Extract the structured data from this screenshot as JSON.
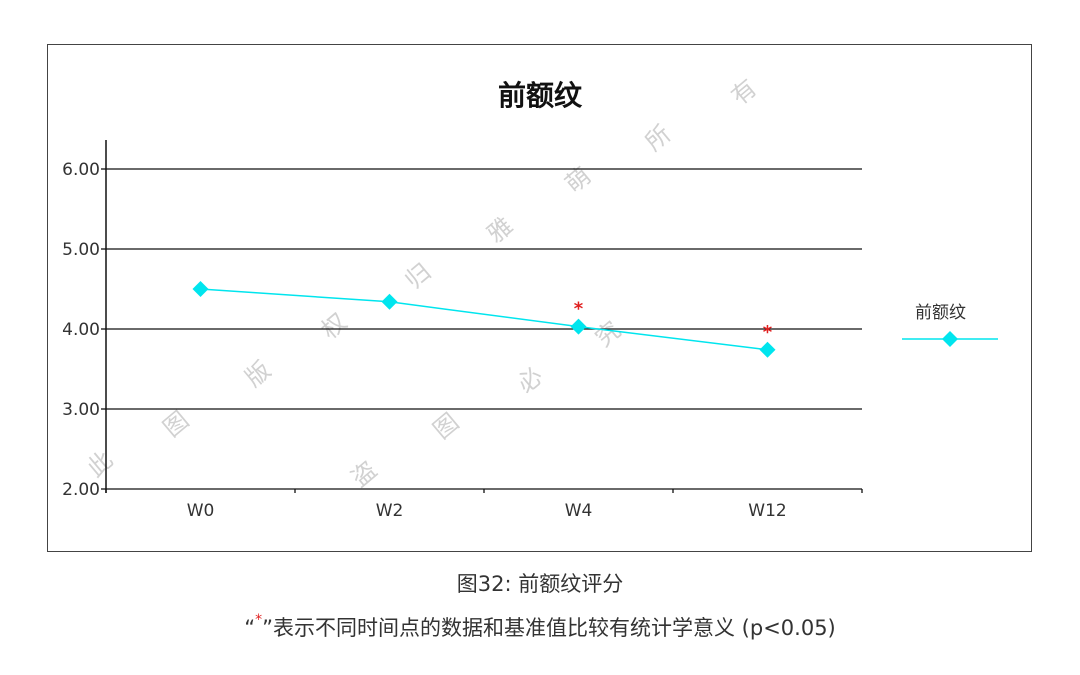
{
  "chart_data": {
    "type": "line",
    "title": "前额纹",
    "categories": [
      "W0",
      "W2",
      "W4",
      "W12"
    ],
    "series": [
      {
        "name": "前额纹",
        "values": [
          4.5,
          4.34,
          4.03,
          3.74
        ],
        "color": "#00e5ee",
        "marker": "diamond"
      }
    ],
    "significance_markers": [
      {
        "category": "W4",
        "symbol": "*",
        "color": "#e02020"
      },
      {
        "category": "W12",
        "symbol": "*",
        "color": "#e02020"
      }
    ],
    "xlabel": "",
    "ylabel": "",
    "ylim": [
      2.0,
      6.0
    ],
    "yticks": [
      "2.00",
      "3.00",
      "4.00",
      "5.00",
      "6.00"
    ],
    "grid": true,
    "legend_position": "right"
  },
  "caption": {
    "figure_label": "图32: 前额纹评分",
    "note_open": "“",
    "note_star": "*",
    "note_rest": "”表示不同时间点的数据和基准值比较有统计学意义 (p<0.05)"
  },
  "watermark": [
    "此",
    "图",
    "版",
    "权",
    "归",
    "雅",
    "萌",
    "所",
    "有",
    "盗",
    "图",
    "必",
    "究"
  ]
}
